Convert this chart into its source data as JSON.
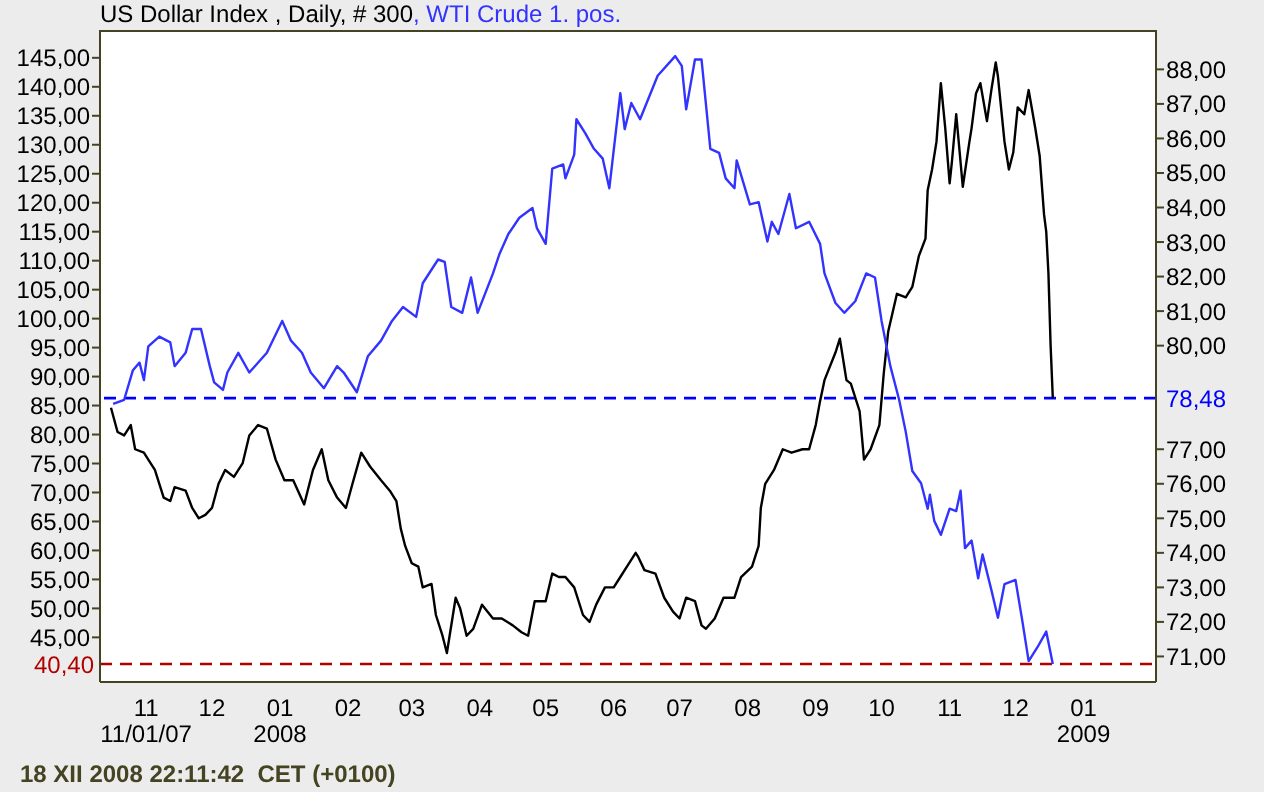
{
  "chart_data": {
    "type": "line",
    "legend": "top left",
    "xlim": [
      "2007-10-11",
      "2009-02-03"
    ],
    "xticks": [
      {
        "value": "2007-11-01",
        "label": "11\n11/01/07"
      },
      {
        "value": "2007-12-01",
        "label": "12"
      },
      {
        "value": "2008-01-01",
        "label": "01\n2008"
      },
      {
        "value": "2008-02-01",
        "label": "02"
      },
      {
        "value": "2008-03-01",
        "label": "03"
      },
      {
        "value": "2008-04-01",
        "label": "04"
      },
      {
        "value": "2008-05-01",
        "label": "05"
      },
      {
        "value": "2008-06-01",
        "label": "06"
      },
      {
        "value": "2008-07-01",
        "label": "07"
      },
      {
        "value": "2008-08-01",
        "label": "08"
      },
      {
        "value": "2008-09-01",
        "label": "09"
      },
      {
        "value": "2008-10-01",
        "label": "10"
      },
      {
        "value": "2008-11-01",
        "label": "11"
      },
      {
        "value": "2008-12-01",
        "label": "12"
      },
      {
        "value": "2009-01-01",
        "label": "01\n2009"
      }
    ],
    "ylim": [
      37.3,
      149.8
    ],
    "yticks": [
      {
        "value": 45,
        "label": "45,00"
      },
      {
        "value": 50,
        "label": "50,00"
      },
      {
        "value": 55,
        "label": "55,00"
      },
      {
        "value": 60,
        "label": "60,00"
      },
      {
        "value": 65,
        "label": "65,00"
      },
      {
        "value": 70,
        "label": "70,00"
      },
      {
        "value": 75,
        "label": "75,00"
      },
      {
        "value": 80,
        "label": "80,00"
      },
      {
        "value": 85,
        "label": "85,00"
      },
      {
        "value": 90,
        "label": "90,00"
      },
      {
        "value": 95,
        "label": "95,00"
      },
      {
        "value": 100,
        "label": "100,00"
      },
      {
        "value": 105,
        "label": "105,00"
      },
      {
        "value": 110,
        "label": "110,00"
      },
      {
        "value": 115,
        "label": "115,00"
      },
      {
        "value": 120,
        "label": "120,00"
      },
      {
        "value": 125,
        "label": "125,00"
      },
      {
        "value": 130,
        "label": "130,00"
      },
      {
        "value": 135,
        "label": "135,00"
      },
      {
        "value": 140,
        "label": "140,00"
      },
      {
        "value": 145,
        "label": "145,00"
      }
    ],
    "y2lim": [
      70.26,
      89.14
    ],
    "y2ticks": [
      {
        "value": 71,
        "label": "71,00"
      },
      {
        "value": 72,
        "label": "72,00"
      },
      {
        "value": 73,
        "label": "73,00"
      },
      {
        "value": 74,
        "label": "74,00"
      },
      {
        "value": 75,
        "label": "75,00"
      },
      {
        "value": 76,
        "label": "76,00"
      },
      {
        "value": 77,
        "label": "77,00"
      },
      {
        "value": 80,
        "label": "80,00"
      },
      {
        "value": 81,
        "label": "81,00"
      },
      {
        "value": 82,
        "label": "82,00"
      },
      {
        "value": 83,
        "label": "83,00"
      },
      {
        "value": 84,
        "label": "84,00"
      },
      {
        "value": 85,
        "label": "85,00"
      },
      {
        "value": 86,
        "label": "86,00"
      },
      {
        "value": 87,
        "label": "87,00"
      },
      {
        "value": 88,
        "label": "88,00"
      }
    ],
    "ref_lines": [
      {
        "axis": "y",
        "value": 40.4,
        "label": "40,40",
        "color": "#b00000",
        "line_style": "dashed"
      },
      {
        "axis": "y2",
        "value": 78.48,
        "label": "78,48",
        "color": "#0000ff",
        "line_style": "dashed"
      }
    ],
    "annotations": [
      "18 XII 2008 22:11:42  CET (+0100)"
    ],
    "series": [
      {
        "name": "US Dollar Index , Daily, # 300",
        "color": "#000000",
        "axis": "y2",
        "x": [
          "2007-10-16",
          "2007-10-19",
          "2007-10-22",
          "2007-10-25",
          "2007-10-27",
          "2007-10-31",
          "2007-11-02",
          "2007-11-05",
          "2007-11-09",
          "2007-11-12",
          "2007-11-14",
          "2007-11-19",
          "2007-11-22",
          "2007-11-25",
          "2007-11-28",
          "2007-12-01",
          "2007-12-04",
          "2007-12-07",
          "2007-12-11",
          "2007-12-15",
          "2007-12-18",
          "2007-12-22",
          "2007-12-26",
          "2007-12-30",
          "2008-01-03",
          "2008-01-07",
          "2008-01-12",
          "2008-01-16",
          "2008-01-20",
          "2008-01-23",
          "2008-01-27",
          "2008-01-31",
          "2008-02-03",
          "2008-02-07",
          "2008-02-11",
          "2008-02-16",
          "2008-02-20",
          "2008-02-23",
          "2008-02-25",
          "2008-02-27",
          "2008-03-01",
          "2008-03-04",
          "2008-03-06",
          "2008-03-10",
          "2008-03-12",
          "2008-03-15",
          "2008-03-17",
          "2008-03-21",
          "2008-03-23",
          "2008-03-26",
          "2008-03-29",
          "2008-04-02",
          "2008-04-07",
          "2008-04-11",
          "2008-04-16",
          "2008-04-20",
          "2008-04-23",
          "2008-04-26",
          "2008-05-01",
          "2008-05-04",
          "2008-05-07",
          "2008-05-10",
          "2008-05-14",
          "2008-05-18",
          "2008-05-21",
          "2008-05-24",
          "2008-05-28",
          "2008-06-01",
          "2008-06-04",
          "2008-06-07",
          "2008-06-11",
          "2008-06-12",
          "2008-06-15",
          "2008-06-20",
          "2008-06-24",
          "2008-06-28",
          "2008-07-01",
          "2008-07-04",
          "2008-07-08",
          "2008-07-11",
          "2008-07-13",
          "2008-07-17",
          "2008-07-21",
          "2008-07-26",
          "2008-07-29",
          "2008-08-03",
          "2008-08-06",
          "2008-08-07",
          "2008-08-09",
          "2008-08-13",
          "2008-08-17",
          "2008-08-21",
          "2008-08-26",
          "2008-08-29",
          "2008-09-01",
          "2008-09-03",
          "2008-09-05",
          "2008-09-10",
          "2008-09-12",
          "2008-09-15",
          "2008-09-17",
          "2008-09-21",
          "2008-09-23",
          "2008-09-26",
          "2008-09-30",
          "2008-10-02",
          "2008-10-04",
          "2008-10-08",
          "2008-10-12",
          "2008-10-15",
          "2008-10-18",
          "2008-10-21",
          "2008-10-22",
          "2008-10-24",
          "2008-10-26",
          "2008-10-28",
          "2008-10-30",
          "2008-11-01",
          "2008-11-02",
          "2008-11-04",
          "2008-11-07",
          "2008-11-10",
          "2008-11-11",
          "2008-11-13",
          "2008-11-15",
          "2008-11-18",
          "2008-11-20",
          "2008-11-22",
          "2008-11-23",
          "2008-11-26",
          "2008-11-28",
          "2008-11-30",
          "2008-12-02",
          "2008-12-05",
          "2008-12-07",
          "2008-12-10",
          "2008-12-12",
          "2008-12-14",
          "2008-12-15",
          "2008-12-16",
          "2008-12-17",
          "2008-12-18"
        ],
        "values": [
          78.2,
          77.5,
          77.4,
          77.7,
          77.0,
          76.9,
          76.7,
          76.4,
          75.6,
          75.5,
          75.9,
          75.8,
          75.3,
          75.0,
          75.1,
          75.3,
          76.0,
          76.4,
          76.2,
          76.6,
          77.4,
          77.7,
          77.6,
          76.7,
          76.1,
          76.1,
          75.4,
          76.4,
          77.0,
          76.1,
          75.6,
          75.3,
          76.0,
          76.9,
          76.5,
          76.1,
          75.8,
          75.5,
          74.7,
          74.2,
          73.7,
          73.6,
          73.0,
          73.1,
          72.2,
          71.6,
          71.1,
          72.7,
          72.4,
          71.6,
          71.8,
          72.5,
          72.1,
          72.1,
          71.9,
          71.7,
          71.6,
          72.6,
          72.6,
          73.4,
          73.3,
          73.3,
          73.0,
          72.2,
          72.0,
          72.5,
          73.0,
          73.0,
          73.3,
          73.6,
          74.0,
          73.9,
          73.5,
          73.4,
          72.7,
          72.3,
          72.1,
          72.7,
          72.6,
          71.9,
          71.8,
          72.1,
          72.7,
          72.7,
          73.3,
          73.6,
          74.2,
          75.3,
          76.0,
          76.4,
          77.0,
          76.9,
          77.0,
          77.0,
          77.7,
          78.4,
          79.0,
          79.8,
          80.2,
          79.0,
          78.9,
          78.1,
          76.7,
          77.0,
          77.7,
          79.2,
          80.4,
          81.5,
          81.4,
          81.7,
          82.6,
          83.1,
          84.5,
          85.1,
          85.9,
          87.6,
          86.3,
          84.7,
          85.3,
          86.7,
          84.6,
          85.9,
          86.3,
          87.3,
          87.6,
          86.5,
          87.4,
          88.2,
          87.8,
          85.9,
          85.1,
          85.6,
          86.9,
          86.7,
          87.4,
          86.3,
          85.5,
          83.8,
          83.3,
          82.1,
          80.0,
          78.48
        ]
      },
      {
        "name": ", WTI Crude 1. pos.",
        "color": "#3333ff",
        "x": [
          "2007-10-17",
          "2007-10-22",
          "2007-10-26",
          "2007-10-29",
          "2007-10-31",
          "2007-11-02",
          "2007-11-07",
          "2007-11-12",
          "2007-11-14",
          "2007-11-19",
          "2007-11-22",
          "2007-11-26",
          "2007-11-30",
          "2007-12-02",
          "2007-12-06",
          "2007-12-08",
          "2007-12-13",
          "2007-12-18",
          "2007-12-26",
          "2008-01-02",
          "2008-01-06",
          "2008-01-11",
          "2008-01-15",
          "2008-01-21",
          "2008-01-27",
          "2008-01-30",
          "2008-02-05",
          "2008-02-10",
          "2008-02-16",
          "2008-02-21",
          "2008-02-26",
          "2008-03-03",
          "2008-03-06",
          "2008-03-13",
          "2008-03-16",
          "2008-03-19",
          "2008-03-24",
          "2008-03-28",
          "2008-03-31",
          "2008-04-07",
          "2008-04-10",
          "2008-04-14",
          "2008-04-19",
          "2008-04-25",
          "2008-04-27",
          "2008-05-01",
          "2008-05-04",
          "2008-05-09",
          "2008-05-10",
          "2008-05-14",
          "2008-05-15",
          "2008-05-19",
          "2008-05-23",
          "2008-05-27",
          "2008-05-30",
          "2008-06-04",
          "2008-06-06",
          "2008-06-09",
          "2008-06-13",
          "2008-06-21",
          "2008-06-29",
          "2008-07-02",
          "2008-07-04",
          "2008-07-08",
          "2008-07-11",
          "2008-07-15",
          "2008-07-19",
          "2008-07-22",
          "2008-07-26",
          "2008-07-27",
          "2008-08-02",
          "2008-08-06",
          "2008-08-10",
          "2008-08-12",
          "2008-08-15",
          "2008-08-20",
          "2008-08-23",
          "2008-08-29",
          "2008-09-03",
          "2008-09-05",
          "2008-09-10",
          "2008-09-14",
          "2008-09-19",
          "2008-09-24",
          "2008-09-28",
          "2008-10-01",
          "2008-10-05",
          "2008-10-09",
          "2008-10-12",
          "2008-10-15",
          "2008-10-19",
          "2008-10-22",
          "2008-10-23",
          "2008-10-25",
          "2008-10-28",
          "2008-11-01",
          "2008-11-04",
          "2008-11-06",
          "2008-11-08",
          "2008-11-11",
          "2008-11-14",
          "2008-11-16",
          "2008-11-20",
          "2008-11-23",
          "2008-11-26",
          "2008-12-01",
          "2008-12-04",
          "2008-12-07",
          "2008-12-11",
          "2008-12-15",
          "2008-12-18"
        ],
        "values": [
          85.3,
          86.0,
          91.1,
          92.4,
          89.4,
          95.2,
          96.9,
          95.9,
          91.8,
          94.1,
          98.2,
          98.2,
          91.8,
          89.0,
          87.7,
          90.7,
          94.1,
          90.7,
          94.1,
          99.6,
          96.2,
          94.1,
          90.7,
          88.0,
          91.8,
          90.7,
          87.3,
          93.5,
          96.2,
          99.6,
          102.0,
          100.3,
          106.1,
          110.2,
          109.8,
          102.0,
          101.0,
          107.1,
          101.0,
          107.8,
          111.2,
          114.6,
          117.4,
          119.1,
          115.6,
          112.9,
          125.9,
          126.6,
          124.2,
          128.3,
          134.4,
          132.0,
          129.3,
          127.6,
          122.5,
          138.9,
          132.7,
          137.2,
          134.4,
          141.9,
          145.3,
          143.6,
          136.1,
          144.7,
          144.7,
          129.3,
          128.6,
          124.2,
          122.5,
          127.3,
          119.7,
          120.1,
          113.3,
          116.7,
          114.6,
          121.5,
          115.6,
          116.7,
          112.9,
          107.8,
          102.7,
          101.0,
          103.0,
          107.8,
          107.1,
          99.6,
          91.8,
          86.0,
          80.5,
          73.7,
          71.6,
          67.2,
          69.6,
          65.1,
          62.7,
          67.2,
          66.8,
          70.3,
          60.4,
          61.7,
          55.2,
          59.3,
          53.2,
          48.4,
          54.2,
          54.9,
          48.1,
          40.9,
          43.3,
          46.0,
          40.4
        ]
      }
    ]
  }
}
